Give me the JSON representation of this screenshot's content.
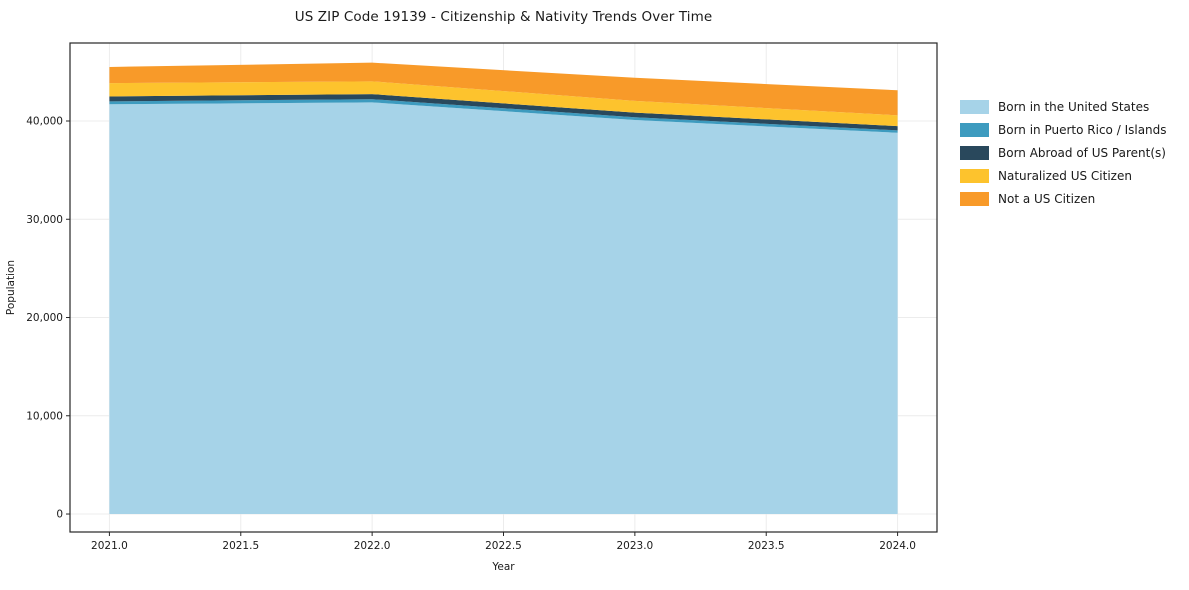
{
  "title": "US ZIP Code 19139 - Citizenship & Nativity Trends Over Time",
  "chart_data": {
    "type": "area",
    "stacked": true,
    "title": "US ZIP Code 19139 - Citizenship & Nativity Trends Over Time",
    "xlabel": "Year",
    "ylabel": "Population",
    "x": [
      2021,
      2022,
      2023,
      2024
    ],
    "series": [
      {
        "name": "Born in the United States",
        "color": "#a6d3e8",
        "values": [
          41700,
          41900,
          40100,
          38800
        ]
      },
      {
        "name": "Born in Puerto Rico / Islands",
        "color": "#3d9bbf",
        "values": [
          300,
          320,
          280,
          250
        ]
      },
      {
        "name": "Born Abroad of US Parent(s)",
        "color": "#29485c",
        "values": [
          500,
          520,
          470,
          430
        ]
      },
      {
        "name": "Naturalized US Citizen",
        "color": "#fdc32d",
        "values": [
          1350,
          1300,
          1200,
          1100
        ]
      },
      {
        "name": "Not a US Citizen",
        "color": "#f89a29",
        "values": [
          1650,
          1900,
          2350,
          2550
        ]
      }
    ],
    "xticks": {
      "values": [
        2021.0,
        2021.5,
        2022.0,
        2022.5,
        2023.0,
        2023.5,
        2024.0
      ],
      "labels": [
        "2021.0",
        "2021.5",
        "2022.0",
        "2022.5",
        "2023.0",
        "2023.5",
        "2024.0"
      ]
    },
    "yticks": {
      "values": [
        0,
        10000,
        20000,
        30000,
        40000
      ],
      "labels": [
        "0",
        "10,000",
        "20,000",
        "30,000",
        "40,000"
      ]
    },
    "xlim": [
      2020.85,
      2024.15
    ],
    "ylim": [
      -1830,
      47940
    ],
    "grid": true,
    "legend_position": "right",
    "colors": {
      "grid": "#ececec",
      "spine": "#262626",
      "tick_text": "#1a1a1a"
    }
  }
}
